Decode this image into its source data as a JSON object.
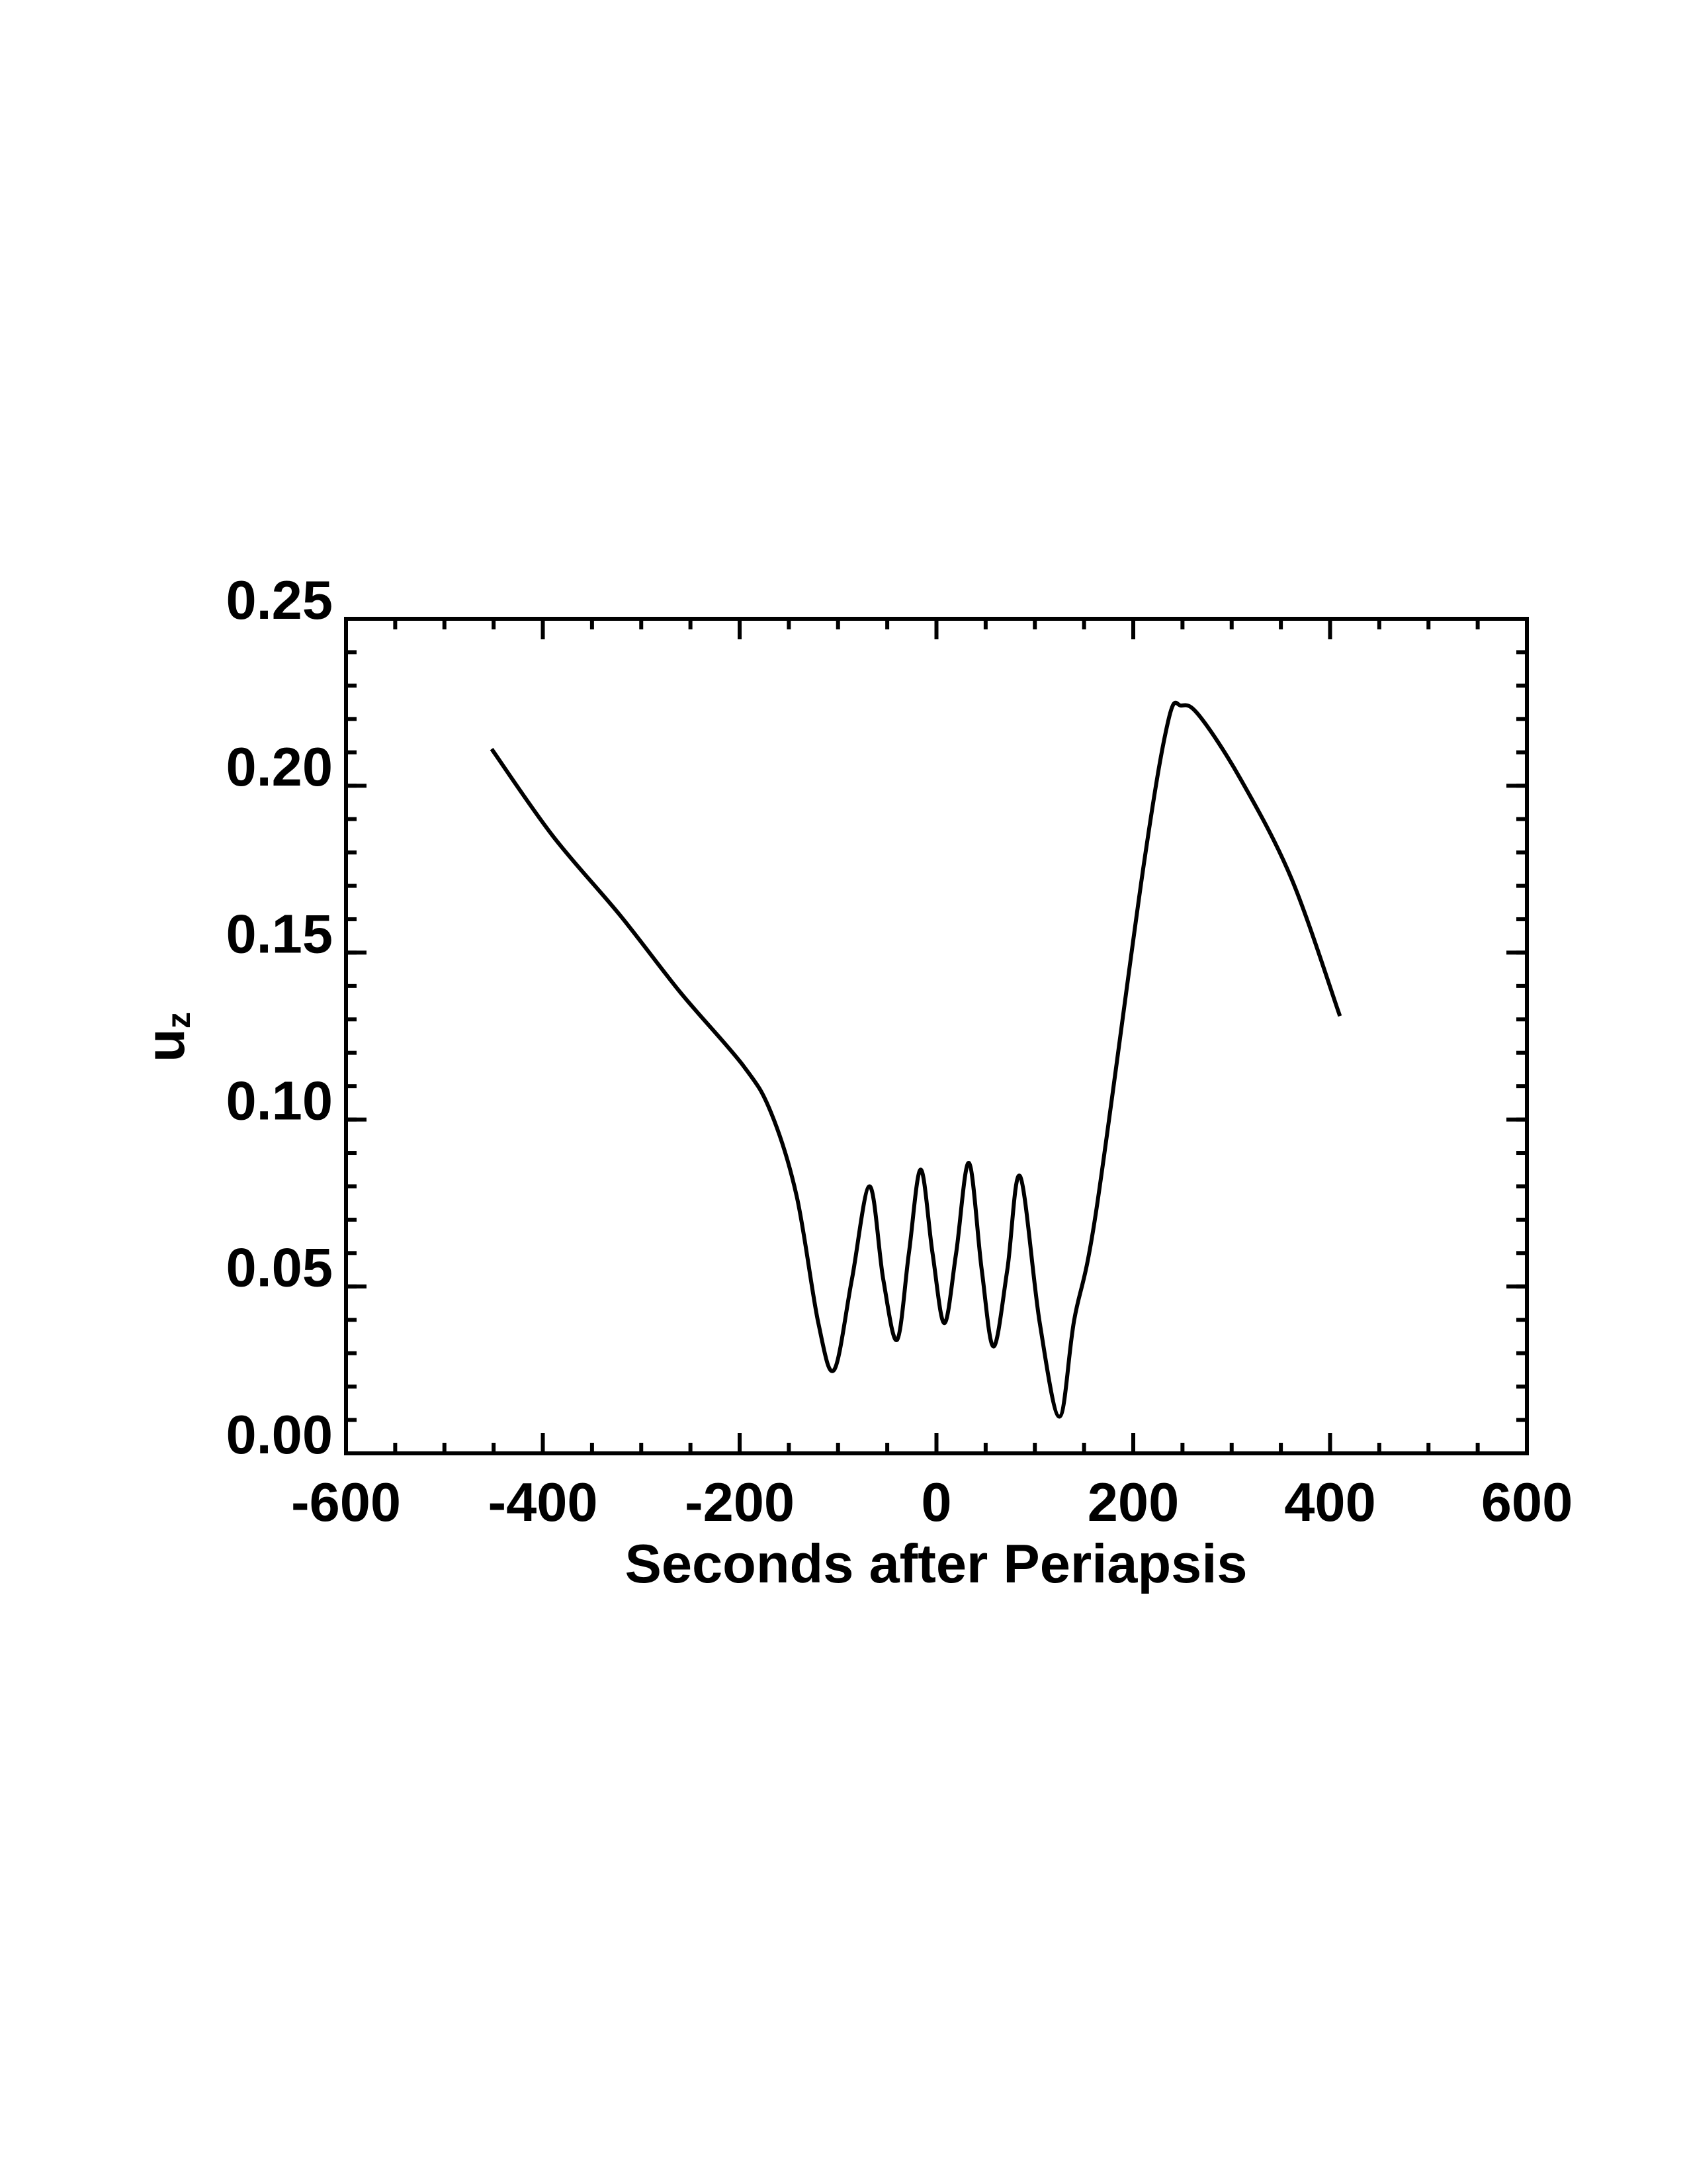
{
  "chart_data": {
    "type": "line",
    "xlabel": "Seconds after Periapsis",
    "ylabel": "u",
    "ylabel_subscript": "z",
    "x": [
      -452,
      -390,
      -321,
      -260,
      -196,
      -168,
      -142,
      -120,
      -104,
      -86,
      -68,
      -54,
      -40,
      -28,
      -16,
      -4,
      8,
      20,
      33,
      46,
      58,
      72,
      85,
      105,
      125,
      140,
      162,
      211,
      236,
      249,
      267,
      309,
      361,
      410
    ],
    "series": [
      {
        "color": "#000000",
        "values": [
          0.211,
          0.185,
          0.161,
          0.138,
          0.116,
          0.102,
          0.077,
          0.039,
          0.025,
          0.052,
          0.08,
          0.052,
          0.034,
          0.06,
          0.085,
          0.06,
          0.039,
          0.06,
          0.087,
          0.055,
          0.032,
          0.055,
          0.083,
          0.039,
          0.011,
          0.04,
          0.072,
          0.177,
          0.22,
          0.224,
          0.221,
          0.202,
          0.172,
          0.131
        ]
      }
    ],
    "xlim": [
      -600,
      600
    ],
    "xticks": [
      -600,
      -400,
      -200,
      0,
      200,
      400,
      600
    ],
    "xminor": 50,
    "ylim": [
      0,
      0.25
    ],
    "yticks": [
      {
        "value": 0,
        "label": "0.00"
      },
      {
        "value": 0.05,
        "label": "0.05"
      },
      {
        "value": 0.1,
        "label": "0.10"
      },
      {
        "value": 0.15,
        "label": "0.15"
      },
      {
        "value": 0.2,
        "label": "0.20"
      },
      {
        "value": 0.25,
        "label": "0.25"
      }
    ],
    "yminor": 0.01
  }
}
